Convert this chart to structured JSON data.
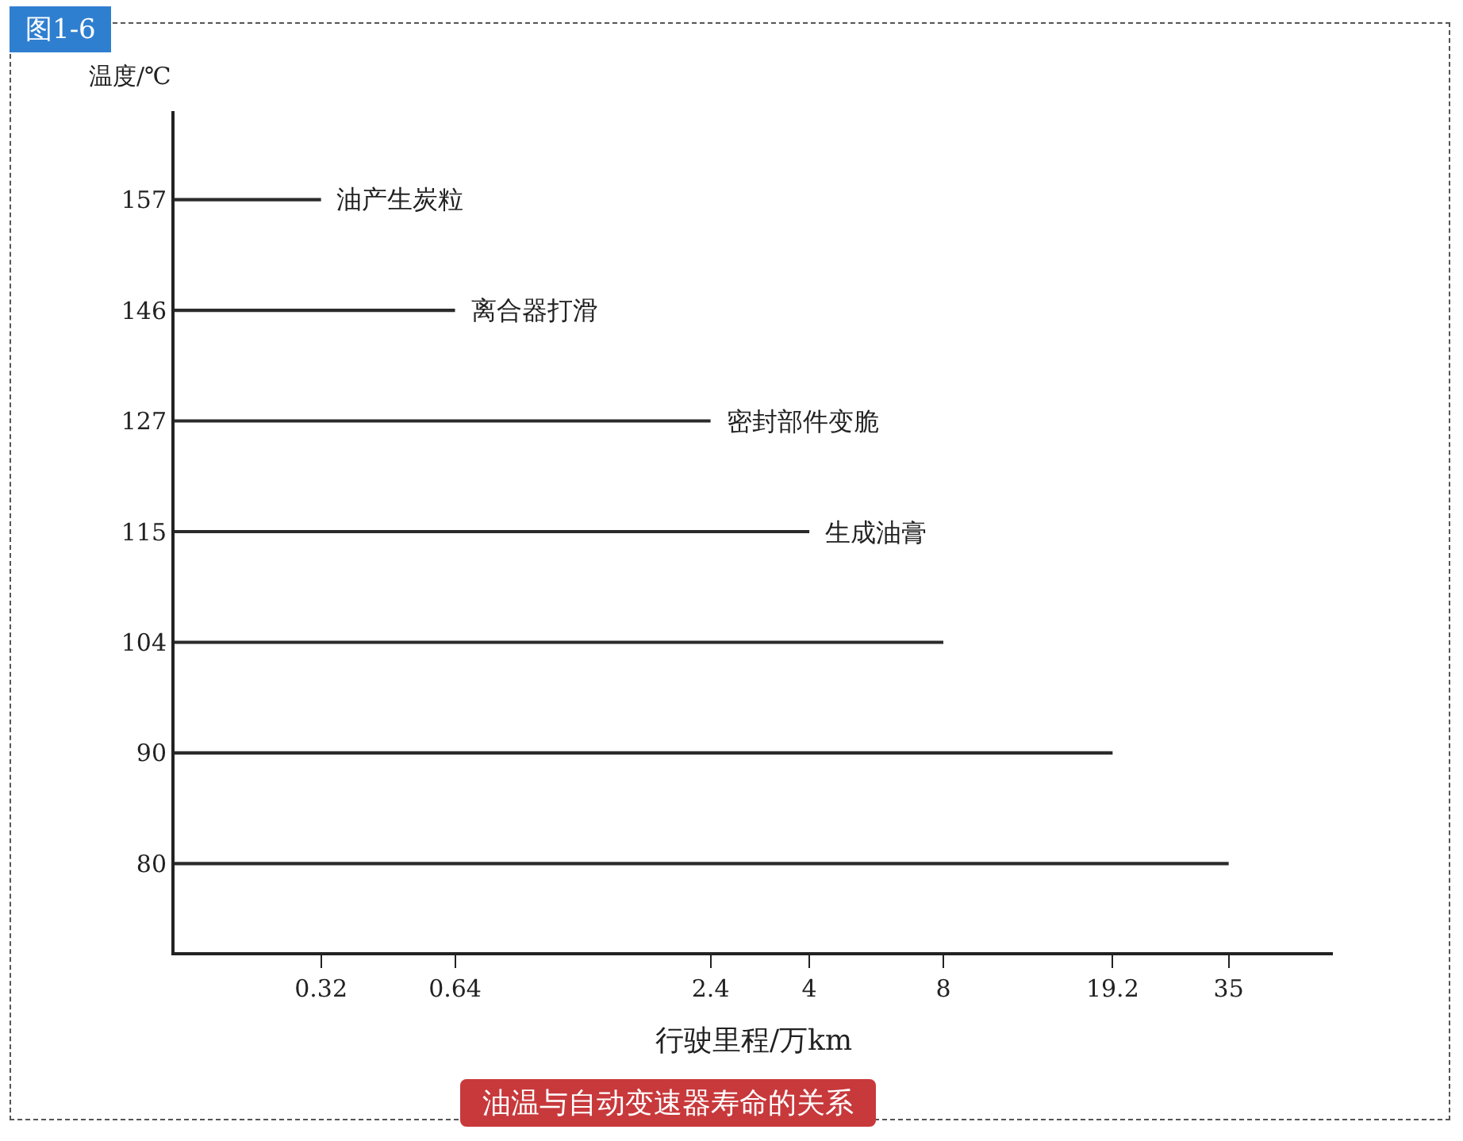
{
  "chart_data": {
    "type": "bar",
    "orientation": "horizontal",
    "title": "图1-6",
    "xlabel": "行驶里程/万km",
    "ylabel": "温度/℃",
    "categories": [
      "157",
      "146",
      "127",
      "115",
      "104",
      "90",
      "80"
    ],
    "values": [
      0.32,
      0.64,
      2.4,
      4,
      8,
      19.2,
      35
    ],
    "color": "#2b2b2b",
    "log": "x",
    "xlim": [
      0.15,
      60
    ],
    "xticks": [
      0.32,
      0.64,
      2.4,
      4,
      8,
      19.2,
      35
    ],
    "grid": false,
    "legend": false,
    "annotations": [
      {
        "text": "油产生炭粒",
        "x": 0.32,
        "y": "157"
      },
      {
        "text": "离合器打滑",
        "x": 0.64,
        "y": "146"
      },
      {
        "text": "密封部件变脆",
        "x": 2.4,
        "y": "127"
      },
      {
        "text": "生成油膏",
        "x": 4,
        "y": "115"
      },
      "油温与自动变速器寿命的关系"
    ]
  }
}
